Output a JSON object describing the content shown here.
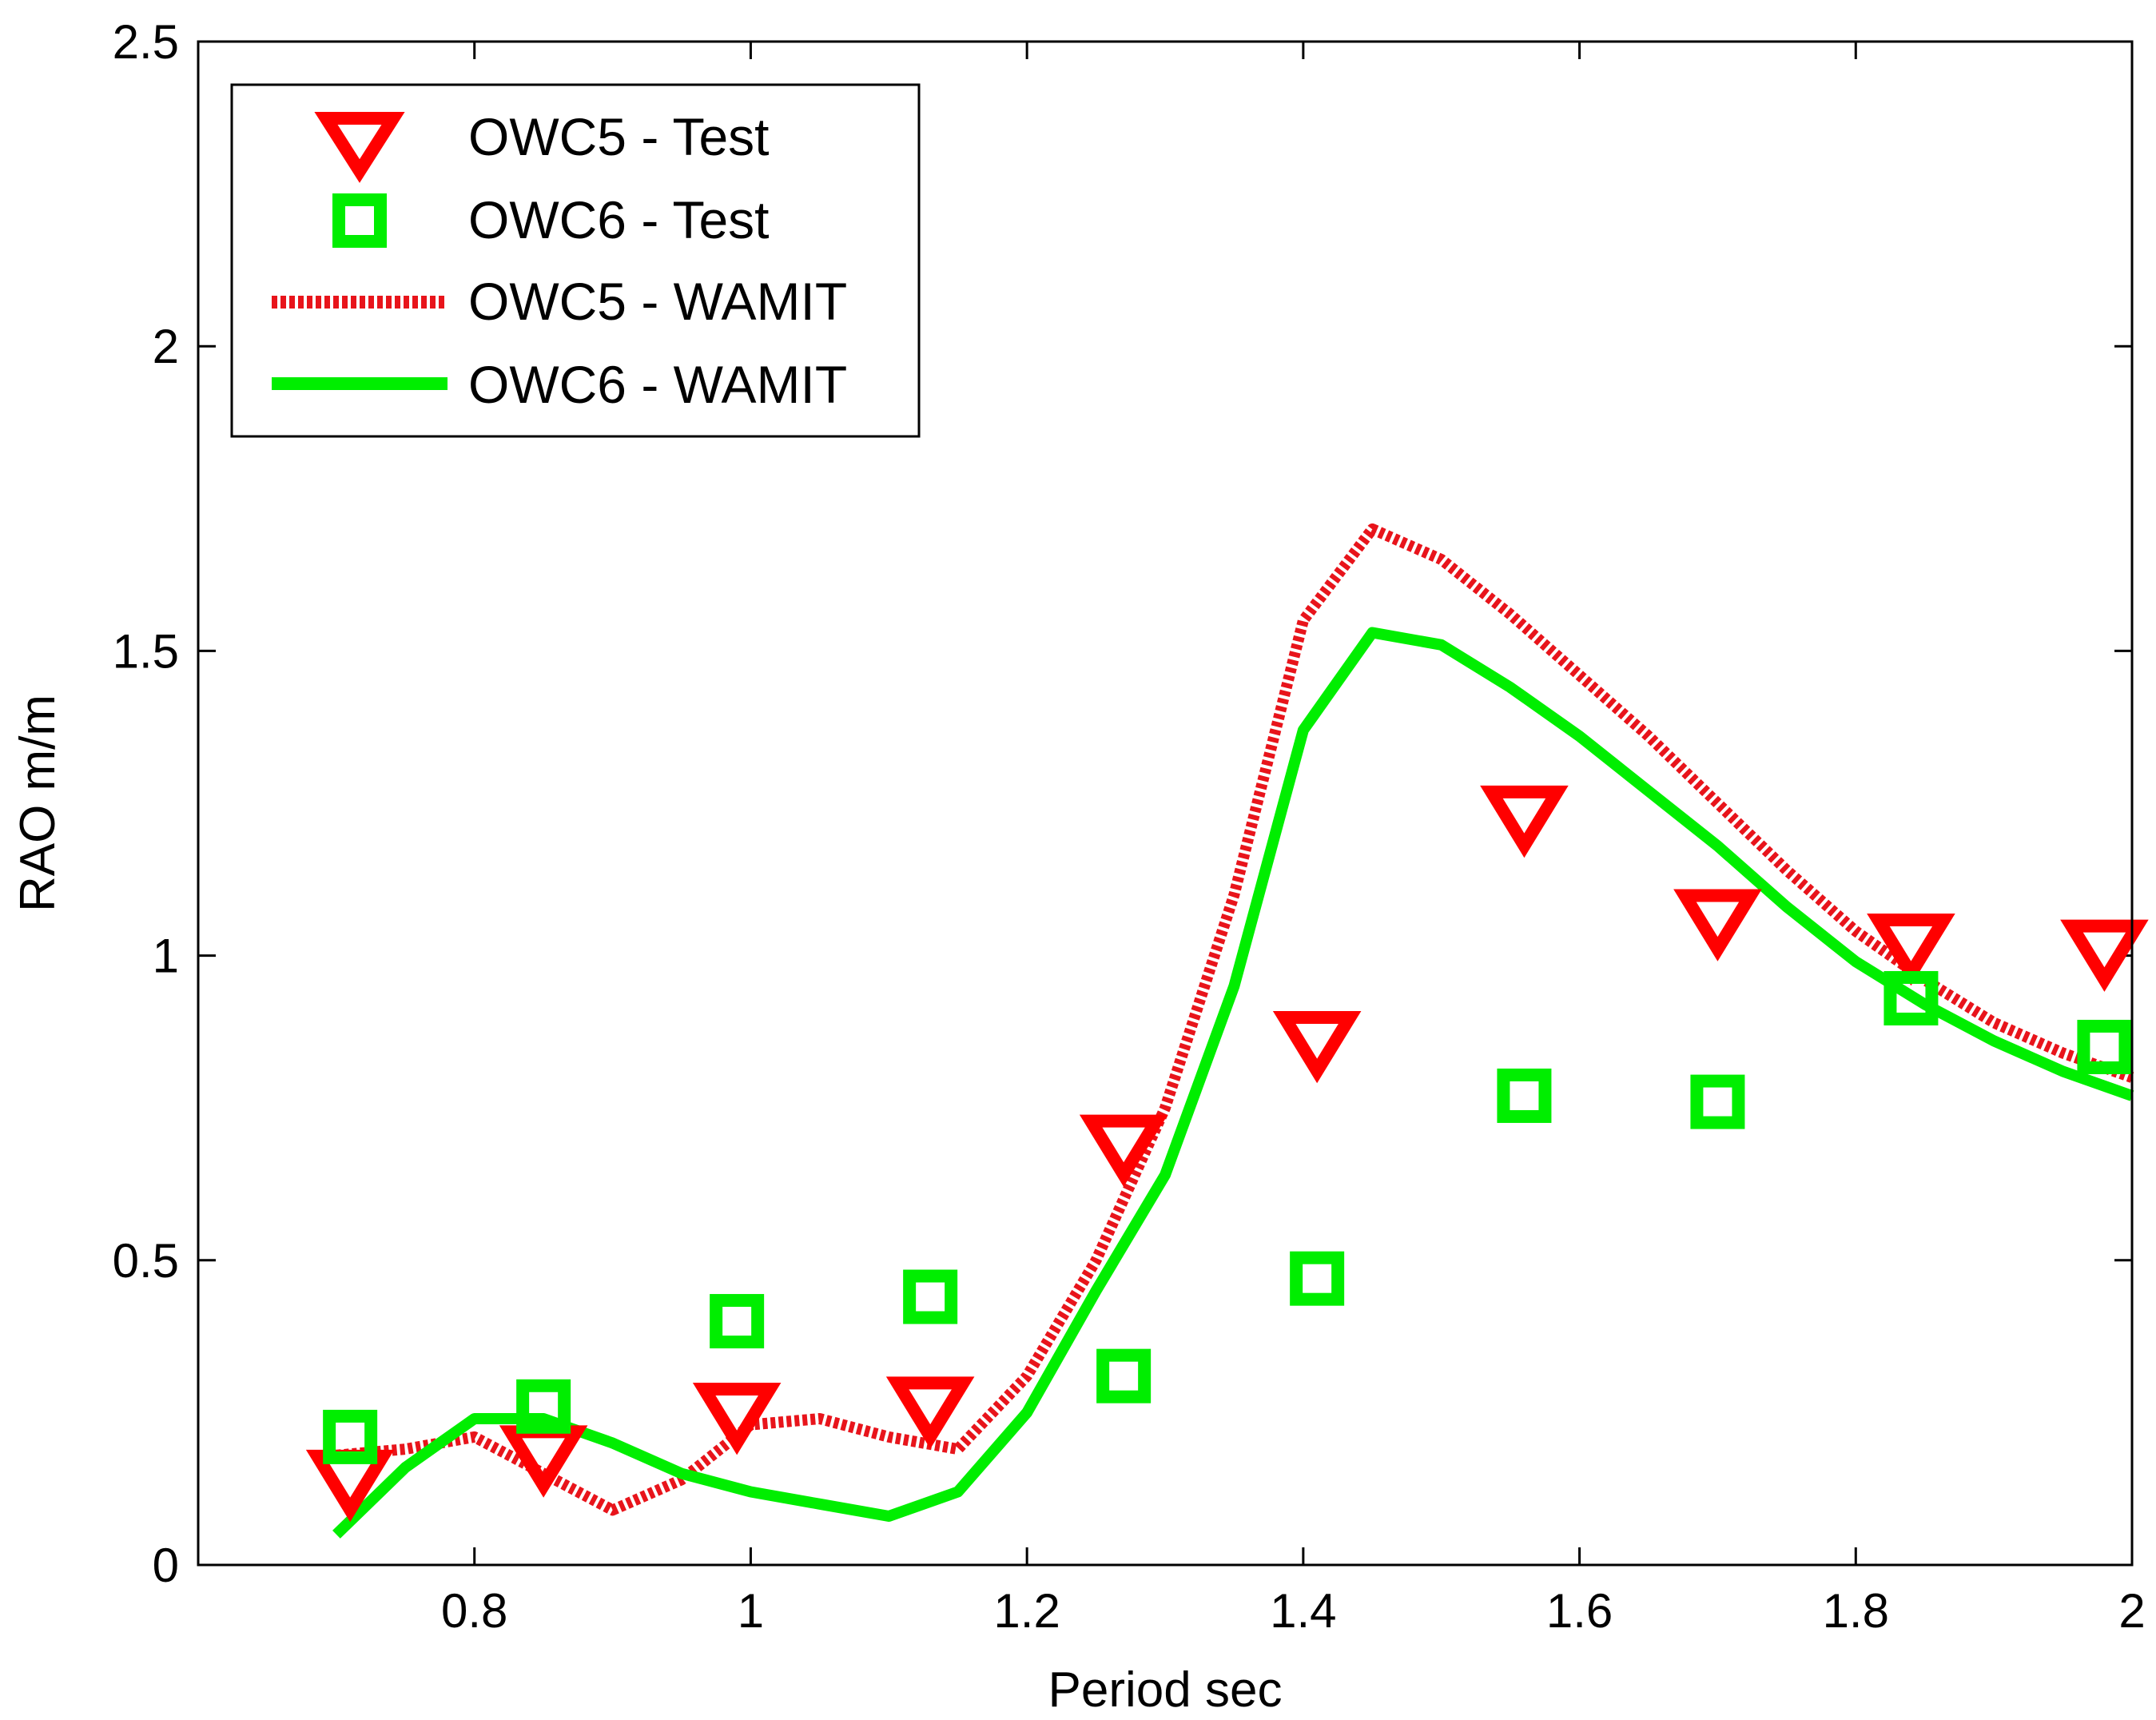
{
  "chart_data": {
    "type": "line",
    "title": "",
    "xlabel": "Period sec",
    "ylabel": "RAO m/m",
    "xlim": [
      0.6,
      2.0
    ],
    "ylim": [
      0,
      2.5
    ],
    "xticks": [
      0.8,
      1,
      1.2,
      1.4,
      1.6,
      1.8,
      2
    ],
    "xtick_labels": [
      "0.8",
      "1",
      "1.2",
      "1.4",
      "1.6",
      "1.8",
      "2"
    ],
    "yticks": [
      0,
      0.5,
      1,
      1.5,
      2,
      2.5
    ],
    "ytick_labels": [
      "0",
      "0.5",
      "1",
      "1.5",
      "2",
      "2.5"
    ],
    "grid": false,
    "legend_position": "top-left",
    "series": [
      {
        "name": "OWC5 - Test",
        "kind": "scatter",
        "marker": "triangle-down",
        "color": "#ff0000",
        "points": [
          [
            0.71,
            0.13
          ],
          [
            0.85,
            0.17
          ],
          [
            0.99,
            0.24
          ],
          [
            1.13,
            0.25
          ],
          [
            1.27,
            0.68
          ],
          [
            1.41,
            0.85
          ],
          [
            1.56,
            1.22
          ],
          [
            1.7,
            1.05
          ],
          [
            1.84,
            1.01
          ],
          [
            1.98,
            1.0
          ]
        ]
      },
      {
        "name": "OWC6 - Test",
        "kind": "scatter",
        "marker": "square",
        "color": "#00ee00",
        "points": [
          [
            0.71,
            0.21
          ],
          [
            0.85,
            0.26
          ],
          [
            0.99,
            0.4
          ],
          [
            1.13,
            0.44
          ],
          [
            1.27,
            0.31
          ],
          [
            1.41,
            0.47
          ],
          [
            1.56,
            0.77
          ],
          [
            1.7,
            0.76
          ],
          [
            1.84,
            0.93
          ],
          [
            1.98,
            0.85
          ]
        ]
      },
      {
        "name": "OWC5 - WAMIT",
        "kind": "line",
        "style": "dotted",
        "color": "#e8141b",
        "points": [
          [
            0.7,
            0.18
          ],
          [
            0.75,
            0.19
          ],
          [
            0.8,
            0.21
          ],
          [
            0.85,
            0.15
          ],
          [
            0.9,
            0.09
          ],
          [
            0.95,
            0.14
          ],
          [
            1.0,
            0.23
          ],
          [
            1.05,
            0.24
          ],
          [
            1.1,
            0.21
          ],
          [
            1.15,
            0.19
          ],
          [
            1.2,
            0.31
          ],
          [
            1.25,
            0.5
          ],
          [
            1.3,
            0.75
          ],
          [
            1.35,
            1.1
          ],
          [
            1.4,
            1.55
          ],
          [
            1.45,
            1.7
          ],
          [
            1.5,
            1.65
          ],
          [
            1.55,
            1.56
          ],
          [
            1.6,
            1.46
          ],
          [
            1.65,
            1.36
          ],
          [
            1.7,
            1.25
          ],
          [
            1.75,
            1.14
          ],
          [
            1.8,
            1.04
          ],
          [
            1.85,
            0.96
          ],
          [
            1.9,
            0.89
          ],
          [
            1.95,
            0.84
          ],
          [
            2.0,
            0.8
          ]
        ]
      },
      {
        "name": "OWC6 - WAMIT",
        "kind": "line",
        "style": "solid",
        "color": "#00ee00",
        "points": [
          [
            0.7,
            0.05
          ],
          [
            0.75,
            0.16
          ],
          [
            0.8,
            0.24
          ],
          [
            0.85,
            0.24
          ],
          [
            0.9,
            0.2
          ],
          [
            0.95,
            0.15
          ],
          [
            1.0,
            0.12
          ],
          [
            1.05,
            0.1
          ],
          [
            1.1,
            0.08
          ],
          [
            1.15,
            0.12
          ],
          [
            1.2,
            0.25
          ],
          [
            1.25,
            0.45
          ],
          [
            1.3,
            0.64
          ],
          [
            1.35,
            0.95
          ],
          [
            1.4,
            1.37
          ],
          [
            1.45,
            1.53
          ],
          [
            1.5,
            1.51
          ],
          [
            1.55,
            1.44
          ],
          [
            1.6,
            1.36
          ],
          [
            1.65,
            1.27
          ],
          [
            1.7,
            1.18
          ],
          [
            1.75,
            1.08
          ],
          [
            1.8,
            0.99
          ],
          [
            1.85,
            0.92
          ],
          [
            1.9,
            0.86
          ],
          [
            1.95,
            0.81
          ],
          [
            2.0,
            0.77
          ]
        ]
      }
    ]
  }
}
